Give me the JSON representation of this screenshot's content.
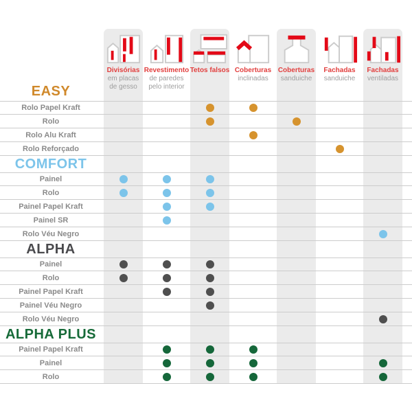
{
  "palette": {
    "stripe_gray": "#EBEBEB",
    "grid_line": "#CCCCCC",
    "row_label_gray": "#8A8A8A",
    "icon_outline_gray": "#CBCBCB",
    "icon_red": "#E30917",
    "caption_red": "#E2403F",
    "caption_gray": "#9E9E9E"
  },
  "chart_data": {
    "type": "table",
    "title": "",
    "legend_note": "dot = product applies to application column",
    "columns": [
      {
        "title": "Divisórias",
        "subtitle_lines": [
          "em placas",
          "de gesso"
        ],
        "icon": "drywall-partitions-icon",
        "shaded": true
      },
      {
        "title": "Revestimento",
        "subtitle_lines": [
          "de paredes",
          "pelo interior"
        ],
        "icon": "interior-wall-lining-icon",
        "shaded": false
      },
      {
        "title": "Tetos falsos",
        "subtitle_lines": [],
        "icon": "false-ceilings-icon",
        "shaded": true
      },
      {
        "title": "Coberturas",
        "subtitle_lines": [
          "inclinadas"
        ],
        "icon": "pitched-roofs-icon",
        "shaded": false
      },
      {
        "title": "Coberturas",
        "subtitle_lines": [
          "sanduiche"
        ],
        "icon": "sandwich-roofs-icon",
        "shaded": true
      },
      {
        "title": "Fachadas",
        "subtitle_lines": [
          "sanduiche"
        ],
        "icon": "sandwich-facades-icon",
        "shaded": false
      },
      {
        "title": "Fachadas",
        "subtitle_lines": [
          "ventiladas"
        ],
        "icon": "ventilated-facades-icon",
        "shaded": true
      }
    ],
    "sections": [
      {
        "name": "EASY",
        "heading_color": "#D0892B",
        "dot_color": "#D6932E",
        "heading_in_header": true,
        "rows": [
          {
            "label": "Rolo Papel Kraft",
            "cells": [
              0,
              0,
              1,
              1,
              0,
              0,
              0
            ]
          },
          {
            "label": "Rolo",
            "cells": [
              0,
              0,
              1,
              0,
              1,
              0,
              0
            ]
          },
          {
            "label": "Rolo Alu Kraft",
            "cells": [
              0,
              0,
              0,
              1,
              0,
              0,
              0
            ]
          },
          {
            "label": "Rolo Reforçado",
            "cells": [
              0,
              0,
              0,
              0,
              0,
              1,
              0
            ]
          }
        ]
      },
      {
        "name": "COMFORT",
        "heading_color": "#7CC4EA",
        "dot_color": "#7CC4EA",
        "heading_in_header": false,
        "rows": [
          {
            "label": "Painel",
            "cells": [
              1,
              1,
              1,
              0,
              0,
              0,
              0
            ]
          },
          {
            "label": "Rolo",
            "cells": [
              1,
              1,
              1,
              0,
              0,
              0,
              0
            ]
          },
          {
            "label": "Painel Papel Kraft",
            "cells": [
              0,
              1,
              1,
              0,
              0,
              0,
              0
            ]
          },
          {
            "label": "Painel SR",
            "cells": [
              0,
              1,
              0,
              0,
              0,
              0,
              0
            ]
          },
          {
            "label": "Rolo Véu Negro",
            "cells": [
              0,
              0,
              0,
              0,
              0,
              0,
              1
            ]
          }
        ]
      },
      {
        "name": "ALPHA",
        "heading_color": "#4A4A4D",
        "dot_color": "#4F4F4F",
        "heading_in_header": false,
        "rows": [
          {
            "label": "Painel",
            "cells": [
              1,
              1,
              1,
              0,
              0,
              0,
              0
            ]
          },
          {
            "label": "Rolo",
            "cells": [
              1,
              1,
              1,
              0,
              0,
              0,
              0
            ]
          },
          {
            "label": "Painel Papel Kraft",
            "cells": [
              0,
              1,
              1,
              0,
              0,
              0,
              0
            ]
          },
          {
            "label": "Painel Véu Negro",
            "cells": [
              0,
              0,
              1,
              0,
              0,
              0,
              0
            ]
          },
          {
            "label": "Rolo Véu Negro",
            "cells": [
              0,
              0,
              0,
              0,
              0,
              0,
              1
            ]
          }
        ]
      },
      {
        "name": "ALPHA PLUS",
        "heading_color": "#166A38",
        "dot_color": "#15673A",
        "heading_in_header": false,
        "rows": [
          {
            "label": "Painel Papel Kraft",
            "cells": [
              0,
              1,
              1,
              1,
              0,
              0,
              0
            ]
          },
          {
            "label": "Painel",
            "cells": [
              0,
              1,
              1,
              1,
              0,
              0,
              1
            ]
          },
          {
            "label": "Rolo",
            "cells": [
              0,
              1,
              1,
              1,
              0,
              0,
              1
            ]
          }
        ]
      }
    ]
  }
}
